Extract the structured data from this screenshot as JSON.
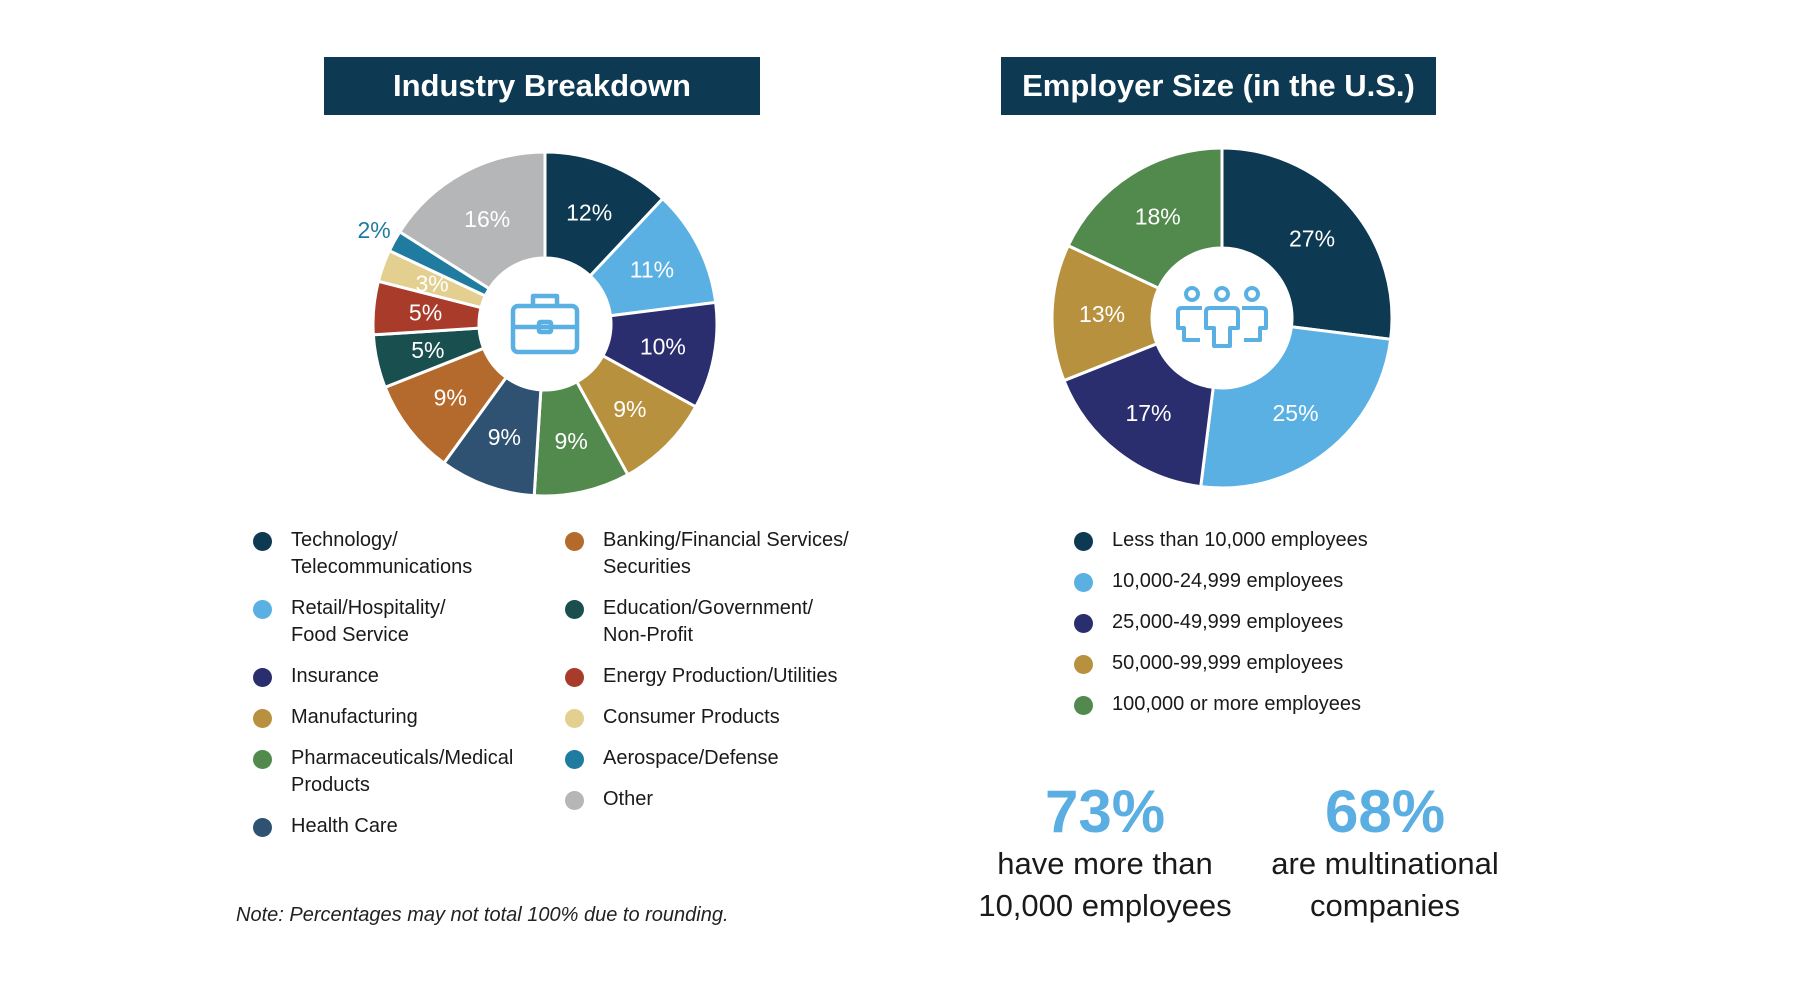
{
  "chart_data": [
    {
      "type": "pie",
      "title": "Industry Breakdown",
      "categories": [
        "Technology/\nTelecommunications",
        "Retail/Hospitality/\nFood Service",
        "Insurance",
        "Manufacturing",
        "Pharmaceuticals/Medical\nProducts",
        "Health Care",
        "Banking/Financial Services/\nSecurities",
        "Education/Government/\nNon-Profit",
        "Energy Production/Utilities",
        "Consumer Products",
        "Aerospace/Defense",
        "Other"
      ],
      "values": [
        12,
        11,
        10,
        9,
        9,
        9,
        9,
        5,
        5,
        3,
        2,
        16
      ],
      "labels": [
        "12%",
        "11%",
        "10%",
        "9%",
        "9%",
        "9%",
        "9%",
        "5%",
        "5%",
        "3%",
        "2%",
        "16%"
      ],
      "colors": [
        "#0d3a52",
        "#5ab0e3",
        "#2a2e6e",
        "#b8913e",
        "#528a4d",
        "#2f5273",
        "#b46a2c",
        "#1a4f50",
        "#a93b2a",
        "#e3cf90",
        "#1f7ba0",
        "#b5b6b8"
      ],
      "icon": "briefcase-icon"
    },
    {
      "type": "pie",
      "title": "Employer Size (in the U.S.)",
      "categories": [
        "Less than 10,000 employees",
        "10,000-24,999 employees",
        "25,000-49,999 employees",
        "50,000-99,999 employees",
        "100,000 or more employees"
      ],
      "values": [
        27,
        25,
        17,
        13,
        18
      ],
      "labels": [
        "27%",
        "25%",
        "17%",
        "13%",
        "18%"
      ],
      "colors": [
        "#0d3a52",
        "#5ab0e3",
        "#2a2e6e",
        "#b8913e",
        "#528a4d"
      ],
      "icon": "people-group-icon"
    }
  ],
  "stats": [
    {
      "value": "73%",
      "text": "have more than\n10,000 employees"
    },
    {
      "value": "68%",
      "text": "are multinational\ncompanies"
    }
  ],
  "note": "Note: Percentages may not total 100% due to rounding."
}
